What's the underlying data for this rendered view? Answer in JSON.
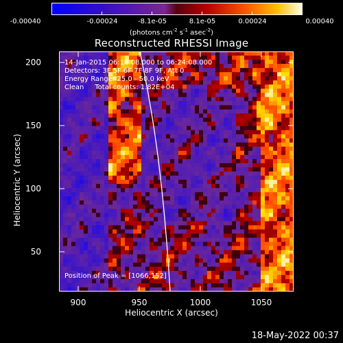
{
  "colorbar": {
    "ticks": [
      "-0.00040",
      "-0.00024",
      "-8.1e-05",
      "8.1e-05",
      "0.00024",
      "0.00040"
    ],
    "units_main": "(photons cm",
    "units_e1": "-2",
    "units_s": " s",
    "units_e2": "-1",
    "units_a": " asec",
    "units_e3": "-2",
    "units_end": ")"
  },
  "title": "Reconstructed RHESSI Image",
  "axes": {
    "xlabel": "Heliocentric X (arcsec)",
    "ylabel": "Heliocentric Y (arcsec)",
    "xticks": [
      "900",
      "950",
      "1000",
      "1050"
    ],
    "yticks": [
      "200",
      "150",
      "100",
      "50"
    ]
  },
  "info": {
    "time": "14-Jan-2015 06:18:08.000 to 06:24:08.000",
    "detectors": "Detectors: 3F 5F 6F 7F 8F 9F, Att 0",
    "energy": "Energy Range: 25.0 - 50.0 keV",
    "method": "Clean     Total counts: 1.82E+04"
  },
  "peak": "Position of Peak = [1066,152]",
  "date": "18-May-2022 00:37",
  "chart_data": {
    "type": "heatmap",
    "title": "Reconstructed RHESSI Image",
    "xlabel": "Heliocentric X (arcsec)",
    "ylabel": "Heliocentric Y (arcsec)",
    "xlim": [
      880,
      1072
    ],
    "ylim": [
      15,
      210
    ],
    "color_range": [
      -0.0004,
      0.0004
    ],
    "peak": [
      1066,
      152
    ]
  }
}
